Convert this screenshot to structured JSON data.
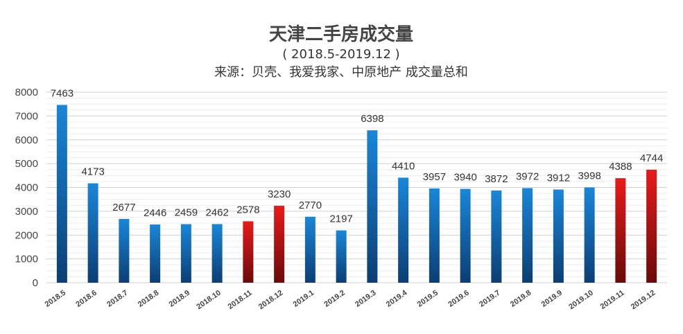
{
  "chart_data": {
    "type": "bar",
    "title": "天津二手房成交量",
    "subtitle": "( 2018.5-2019.12 )",
    "source_note": "来源：贝壳、我爱我家、中原地产 成交量总和",
    "categories": [
      "2018.5",
      "2018.6",
      "2018.7",
      "2018.8",
      "2018.9",
      "2018.10",
      "2018.11",
      "2018.12",
      "2019.1",
      "2019.2",
      "2019.3",
      "2019.4",
      "2019.5",
      "2019.6",
      "2019.7",
      "2019.8",
      "2019.9",
      "2019.10",
      "2019.11",
      "2019.12"
    ],
    "values": [
      7463,
      4173,
      2677,
      2446,
      2459,
      2462,
      2578,
      3230,
      2770,
      2197,
      6398,
      4410,
      3957,
      3940,
      3872,
      3972,
      3912,
      3998,
      4388,
      4744
    ],
    "highlight": [
      false,
      false,
      false,
      false,
      false,
      false,
      true,
      true,
      false,
      false,
      false,
      false,
      false,
      false,
      false,
      false,
      false,
      false,
      true,
      true
    ],
    "ylim": [
      0,
      8000
    ],
    "yticks": [
      0,
      1000,
      2000,
      3000,
      4000,
      5000,
      6000,
      7000,
      8000
    ],
    "grid": true,
    "legend": "none",
    "colors": {
      "blue": "#1a7fd0",
      "blue_dark": "#0b3e74",
      "red": "#e01515",
      "red_dark": "#6a0a0a",
      "grid": "#d9d9d9"
    }
  }
}
